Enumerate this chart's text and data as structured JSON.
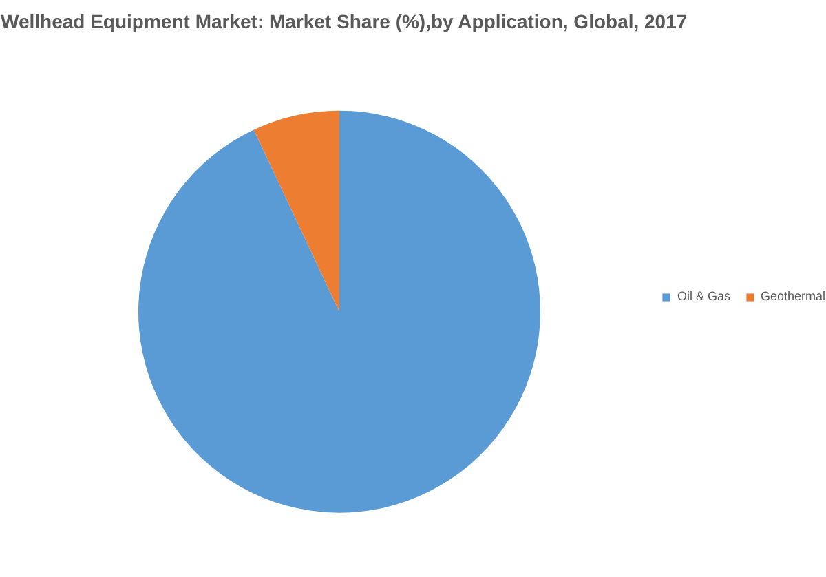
{
  "chart_data": {
    "type": "pie",
    "title": "Wellhead Equipment Market: Market Share (%),by Application, Global, 2017",
    "categories": [
      "Oil & Gas",
      "Geothermal"
    ],
    "values": [
      93,
      7
    ],
    "colors": [
      "#5b9bd5",
      "#ed7d31"
    ],
    "legend": "right"
  }
}
